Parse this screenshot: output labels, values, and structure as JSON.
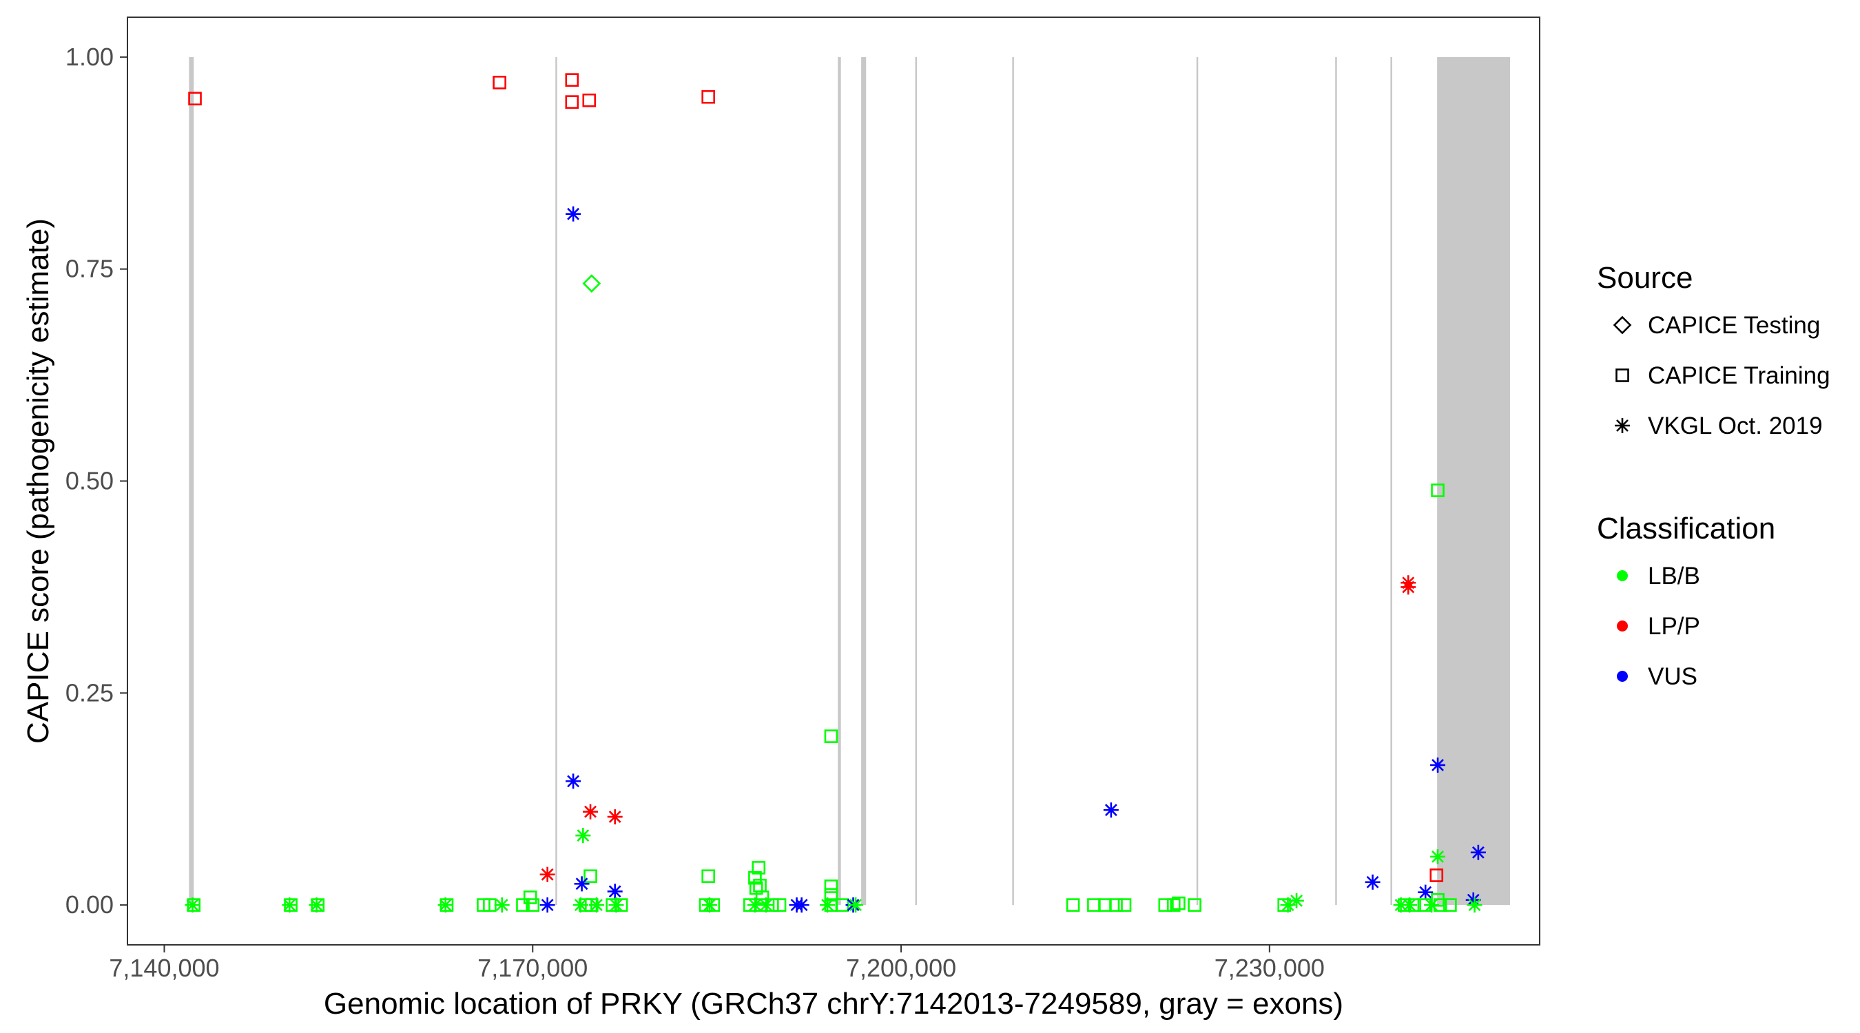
{
  "chart_data": {
    "type": "scatter",
    "xlabel": "Genomic location of PRKY (GRCh37 chrY:7142013-7249589, gray = exons)",
    "ylabel": "CAPICE score (pathogenicity estimate)",
    "xlim": [
      7137000,
      7252000
    ],
    "ylim": [
      -0.047,
      1.047
    ],
    "x_ticks": [
      7140000,
      7170000,
      7200000,
      7230000
    ],
    "x_tick_labels": [
      "7,140,000",
      "7,170,000",
      "7,200,000",
      "7,230,000"
    ],
    "y_ticks": [
      0,
      0.25,
      0.5,
      0.75,
      1.0
    ],
    "y_tick_labels": [
      "0.00",
      "0.25",
      "0.50",
      "0.75",
      "1.00"
    ],
    "grid": false,
    "exons": [
      {
        "start": 7142013,
        "end": 7142400
      },
      {
        "start": 7171850,
        "end": 7171950
      },
      {
        "start": 7194850,
        "end": 7195100
      },
      {
        "start": 7196750,
        "end": 7197150
      },
      {
        "start": 7201150,
        "end": 7201250
      },
      {
        "start": 7209050,
        "end": 7209150
      },
      {
        "start": 7224050,
        "end": 7224150
      },
      {
        "start": 7235350,
        "end": 7235450
      },
      {
        "start": 7239850,
        "end": 7239950
      },
      {
        "start": 7243650,
        "end": 7249589
      }
    ],
    "legend": {
      "position": "right",
      "shape_title": "Source",
      "shape_entries": [
        {
          "label": "CAPICE Testing",
          "shape": "diamond"
        },
        {
          "label": "CAPICE Training",
          "shape": "square"
        },
        {
          "label": "VKGL Oct. 2019",
          "shape": "asterisk"
        }
      ],
      "color_title": "Classification",
      "color_entries": [
        {
          "label": "LB/B",
          "color": "#00ff00"
        },
        {
          "label": "LP/P",
          "color": "#ff0000"
        },
        {
          "label": "VUS",
          "color": "#0000ff"
        }
      ]
    },
    "colors": {
      "LB/B": "#00ff00",
      "LP/P": "#ff0000",
      "VUS": "#0000ff"
    },
    "points": [
      {
        "x": 7142500,
        "y": 0.951,
        "source": "CAPICE Training",
        "class": "LP/P"
      },
      {
        "x": 7167300,
        "y": 0.97,
        "source": "CAPICE Training",
        "class": "LP/P"
      },
      {
        "x": 7173200,
        "y": 0.973,
        "source": "CAPICE Training",
        "class": "LP/P"
      },
      {
        "x": 7173200,
        "y": 0.947,
        "source": "CAPICE Training",
        "class": "LP/P"
      },
      {
        "x": 7174600,
        "y": 0.949,
        "source": "CAPICE Training",
        "class": "LP/P"
      },
      {
        "x": 7184300,
        "y": 0.953,
        "source": "CAPICE Training",
        "class": "LP/P"
      },
      {
        "x": 7173300,
        "y": 0.815,
        "source": "VKGL Oct. 2019",
        "class": "VUS"
      },
      {
        "x": 7174800,
        "y": 0.733,
        "source": "CAPICE Testing",
        "class": "LB/B"
      },
      {
        "x": 7243700,
        "y": 0.489,
        "source": "CAPICE Training",
        "class": "LB/B"
      },
      {
        "x": 7241300,
        "y": 0.38,
        "source": "VKGL Oct. 2019",
        "class": "LP/P"
      },
      {
        "x": 7241300,
        "y": 0.375,
        "source": "VKGL Oct. 2019",
        "class": "LP/P"
      },
      {
        "x": 7194300,
        "y": 0.199,
        "source": "CAPICE Training",
        "class": "LB/B"
      },
      {
        "x": 7243700,
        "y": 0.165,
        "source": "VKGL Oct. 2019",
        "class": "VUS"
      },
      {
        "x": 7173300,
        "y": 0.146,
        "source": "VKGL Oct. 2019",
        "class": "VUS"
      },
      {
        "x": 7217100,
        "y": 0.112,
        "source": "VKGL Oct. 2019",
        "class": "VUS"
      },
      {
        "x": 7174700,
        "y": 0.11,
        "source": "VKGL Oct. 2019",
        "class": "LP/P"
      },
      {
        "x": 7176700,
        "y": 0.104,
        "source": "VKGL Oct. 2019",
        "class": "LP/P"
      },
      {
        "x": 7174100,
        "y": 0.082,
        "source": "VKGL Oct. 2019",
        "class": "LB/B"
      },
      {
        "x": 7247000,
        "y": 0.062,
        "source": "VKGL Oct. 2019",
        "class": "VUS"
      },
      {
        "x": 7243700,
        "y": 0.057,
        "source": "VKGL Oct. 2019",
        "class": "LB/B"
      },
      {
        "x": 7188400,
        "y": 0.044,
        "source": "CAPICE Training",
        "class": "LB/B"
      },
      {
        "x": 7171200,
        "y": 0.036,
        "source": "VKGL Oct. 2019",
        "class": "LP/P"
      },
      {
        "x": 7243600,
        "y": 0.035,
        "source": "CAPICE Training",
        "class": "LP/P"
      },
      {
        "x": 7174700,
        "y": 0.034,
        "source": "CAPICE Training",
        "class": "LB/B"
      },
      {
        "x": 7184300,
        "y": 0.034,
        "source": "CAPICE Training",
        "class": "LB/B"
      },
      {
        "x": 7188100,
        "y": 0.032,
        "source": "CAPICE Training",
        "class": "LB/B"
      },
      {
        "x": 7238400,
        "y": 0.027,
        "source": "VKGL Oct. 2019",
        "class": "VUS"
      },
      {
        "x": 7174000,
        "y": 0.025,
        "source": "VKGL Oct. 2019",
        "class": "VUS"
      },
      {
        "x": 7188500,
        "y": 0.023,
        "source": "CAPICE Training",
        "class": "LB/B"
      },
      {
        "x": 7194300,
        "y": 0.022,
        "source": "CAPICE Training",
        "class": "LB/B"
      },
      {
        "x": 7188200,
        "y": 0.02,
        "source": "CAPICE Training",
        "class": "LB/B"
      },
      {
        "x": 7176700,
        "y": 0.016,
        "source": "VKGL Oct. 2019",
        "class": "VUS"
      },
      {
        "x": 7242700,
        "y": 0.015,
        "source": "VKGL Oct. 2019",
        "class": "VUS"
      },
      {
        "x": 7194300,
        "y": 0.012,
        "source": "CAPICE Training",
        "class": "LB/B"
      },
      {
        "x": 7169800,
        "y": 0.009,
        "source": "CAPICE Training",
        "class": "LB/B"
      },
      {
        "x": 7188700,
        "y": 0.009,
        "source": "CAPICE Training",
        "class": "LB/B"
      },
      {
        "x": 7243700,
        "y": 0.006,
        "source": "CAPICE Training",
        "class": "LB/B"
      },
      {
        "x": 7246600,
        "y": 0.006,
        "source": "VKGL Oct. 2019",
        "class": "VUS"
      },
      {
        "x": 7232200,
        "y": 0.005,
        "source": "VKGL Oct. 2019",
        "class": "LB/B"
      },
      {
        "x": 7142300,
        "y": 0.0,
        "source": "VKGL Oct. 2019",
        "class": "LB/B"
      },
      {
        "x": 7142400,
        "y": 0.0,
        "source": "CAPICE Training",
        "class": "LB/B"
      },
      {
        "x": 7150200,
        "y": 0.0,
        "source": "VKGL Oct. 2019",
        "class": "LB/B"
      },
      {
        "x": 7150300,
        "y": 0.0,
        "source": "CAPICE Training",
        "class": "LB/B"
      },
      {
        "x": 7152400,
        "y": 0.0,
        "source": "VKGL Oct. 2019",
        "class": "LB/B"
      },
      {
        "x": 7152500,
        "y": 0.0,
        "source": "CAPICE Training",
        "class": "LB/B"
      },
      {
        "x": 7162900,
        "y": 0.0,
        "source": "VKGL Oct. 2019",
        "class": "LB/B"
      },
      {
        "x": 7163000,
        "y": 0.0,
        "source": "CAPICE Training",
        "class": "LB/B"
      },
      {
        "x": 7166000,
        "y": 0.0,
        "source": "CAPICE Training",
        "class": "LB/B"
      },
      {
        "x": 7166500,
        "y": 0.0,
        "source": "CAPICE Training",
        "class": "LB/B"
      },
      {
        "x": 7167500,
        "y": 0.0,
        "source": "VKGL Oct. 2019",
        "class": "LB/B"
      },
      {
        "x": 7169200,
        "y": 0.0,
        "source": "CAPICE Training",
        "class": "LB/B"
      },
      {
        "x": 7170000,
        "y": 0.0,
        "source": "CAPICE Training",
        "class": "LB/B"
      },
      {
        "x": 7171200,
        "y": 0.0,
        "source": "VKGL Oct. 2019",
        "class": "VUS"
      },
      {
        "x": 7173900,
        "y": 0.0,
        "source": "VKGL Oct. 2019",
        "class": "LB/B"
      },
      {
        "x": 7174300,
        "y": 0.0,
        "source": "CAPICE Training",
        "class": "LB/B"
      },
      {
        "x": 7174800,
        "y": 0.0,
        "source": "CAPICE Training",
        "class": "LB/B"
      },
      {
        "x": 7175200,
        "y": 0.0,
        "source": "VKGL Oct. 2019",
        "class": "LB/B"
      },
      {
        "x": 7176500,
        "y": 0.0,
        "source": "CAPICE Training",
        "class": "LB/B"
      },
      {
        "x": 7176800,
        "y": 0.0,
        "source": "VKGL Oct. 2019",
        "class": "LB/B"
      },
      {
        "x": 7177200,
        "y": 0.0,
        "source": "CAPICE Training",
        "class": "LB/B"
      },
      {
        "x": 7184100,
        "y": 0.0,
        "source": "CAPICE Training",
        "class": "LB/B"
      },
      {
        "x": 7184400,
        "y": 0.0,
        "source": "VKGL Oct. 2019",
        "class": "LB/B"
      },
      {
        "x": 7184700,
        "y": 0.0,
        "source": "CAPICE Training",
        "class": "LB/B"
      },
      {
        "x": 7187700,
        "y": 0.0,
        "source": "CAPICE Training",
        "class": "LB/B"
      },
      {
        "x": 7188100,
        "y": 0.0,
        "source": "VKGL Oct. 2019",
        "class": "LB/B"
      },
      {
        "x": 7188600,
        "y": 0.0,
        "source": "CAPICE Training",
        "class": "LB/B"
      },
      {
        "x": 7189000,
        "y": 0.0,
        "source": "VKGL Oct. 2019",
        "class": "LB/B"
      },
      {
        "x": 7189500,
        "y": 0.0,
        "source": "CAPICE Training",
        "class": "LB/B"
      },
      {
        "x": 7190100,
        "y": 0.0,
        "source": "CAPICE Training",
        "class": "LB/B"
      },
      {
        "x": 7191500,
        "y": 0.0,
        "source": "VKGL Oct. 2019",
        "class": "VUS"
      },
      {
        "x": 7191900,
        "y": 0.0,
        "source": "VKGL Oct. 2019",
        "class": "VUS"
      },
      {
        "x": 7194000,
        "y": 0.0,
        "source": "VKGL Oct. 2019",
        "class": "LB/B"
      },
      {
        "x": 7194300,
        "y": 0.0,
        "source": "CAPICE Training",
        "class": "LB/B"
      },
      {
        "x": 7195200,
        "y": 0.0,
        "source": "CAPICE Training",
        "class": "LB/B"
      },
      {
        "x": 7196100,
        "y": 0.0,
        "source": "VKGL Oct. 2019",
        "class": "VUS"
      },
      {
        "x": 7196300,
        "y": 0.0,
        "source": "VKGL Oct. 2019",
        "class": "LB/B"
      },
      {
        "x": 7214000,
        "y": 0.0,
        "source": "CAPICE Training",
        "class": "LB/B"
      },
      {
        "x": 7215700,
        "y": 0.0,
        "source": "CAPICE Training",
        "class": "LB/B"
      },
      {
        "x": 7216600,
        "y": 0.0,
        "source": "CAPICE Training",
        "class": "LB/B"
      },
      {
        "x": 7217500,
        "y": 0.0,
        "source": "CAPICE Training",
        "class": "LB/B"
      },
      {
        "x": 7218200,
        "y": 0.0,
        "source": "CAPICE Training",
        "class": "LB/B"
      },
      {
        "x": 7221500,
        "y": 0.0,
        "source": "CAPICE Training",
        "class": "LB/B"
      },
      {
        "x": 7222200,
        "y": 0.0,
        "source": "CAPICE Training",
        "class": "LB/B"
      },
      {
        "x": 7222600,
        "y": 0.002,
        "source": "CAPICE Training",
        "class": "LB/B"
      },
      {
        "x": 7223900,
        "y": 0.0,
        "source": "CAPICE Training",
        "class": "LB/B"
      },
      {
        "x": 7231200,
        "y": 0.0,
        "source": "CAPICE Training",
        "class": "LB/B"
      },
      {
        "x": 7231500,
        "y": 0.0,
        "source": "VKGL Oct. 2019",
        "class": "LB/B"
      },
      {
        "x": 7240700,
        "y": 0.0,
        "source": "VKGL Oct. 2019",
        "class": "LB/B"
      },
      {
        "x": 7241000,
        "y": 0.0,
        "source": "CAPICE Training",
        "class": "LB/B"
      },
      {
        "x": 7241400,
        "y": 0.0,
        "source": "VKGL Oct. 2019",
        "class": "LB/B"
      },
      {
        "x": 7241800,
        "y": 0.0,
        "source": "CAPICE Training",
        "class": "LB/B"
      },
      {
        "x": 7242600,
        "y": 0.0,
        "source": "CAPICE Training",
        "class": "LB/B"
      },
      {
        "x": 7243200,
        "y": 0.0,
        "source": "VKGL Oct. 2019",
        "class": "LB/B"
      },
      {
        "x": 7243900,
        "y": 0.0,
        "source": "CAPICE Training",
        "class": "LB/B"
      },
      {
        "x": 7244700,
        "y": 0.0,
        "source": "CAPICE Training",
        "class": "LB/B"
      },
      {
        "x": 7246700,
        "y": 0.0,
        "source": "VKGL Oct. 2019",
        "class": "LB/B"
      }
    ]
  }
}
